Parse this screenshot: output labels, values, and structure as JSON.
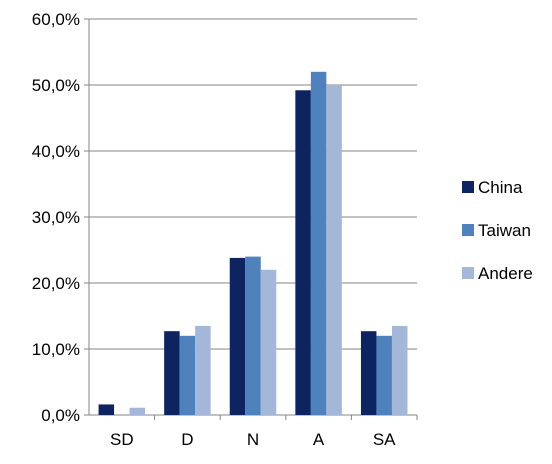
{
  "chart_data": {
    "type": "bar",
    "title": "",
    "xlabel": "",
    "ylabel": "",
    "categories": [
      "SD",
      "D",
      "N",
      "A",
      "SA"
    ],
    "ylim": [
      0,
      60
    ],
    "yticks": [
      0,
      10,
      20,
      30,
      40,
      50,
      60
    ],
    "ytick_labels": [
      "0,0%",
      "10,0%",
      "20,0%",
      "30,0%",
      "40,0%",
      "50,0%",
      "60,0%"
    ],
    "grid": true,
    "legend_position": "right",
    "series": [
      {
        "name": "China",
        "color": "#0e2461",
        "values": [
          1.6,
          12.7,
          23.8,
          49.2,
          12.7
        ]
      },
      {
        "name": "Taiwan",
        "color": "#4f81bd",
        "values": [
          0.0,
          12.0,
          24.0,
          52.0,
          12.0
        ]
      },
      {
        "name": "Andere",
        "color": "#a5b7d9",
        "values": [
          1.1,
          13.5,
          22.0,
          50.0,
          13.5
        ]
      }
    ]
  }
}
